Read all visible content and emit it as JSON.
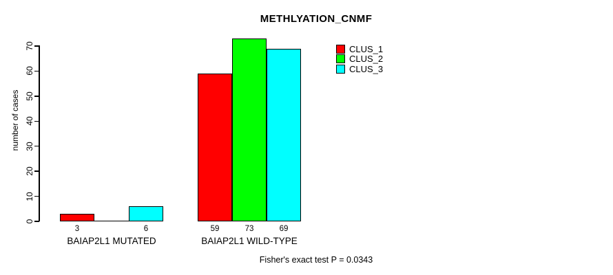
{
  "title": "METHLYATION_CNMF",
  "y_axis": {
    "label": "number of cases",
    "ticks": [
      0,
      10,
      20,
      30,
      40,
      50,
      60,
      70
    ]
  },
  "legend": [
    {
      "label": "CLUS_1",
      "color": "#FF0000"
    },
    {
      "label": "CLUS_2",
      "color": "#00FF00"
    },
    {
      "label": "CLUS_3",
      "color": "#00FFFF"
    }
  ],
  "footnote": "Fisher's exact test P = 0.0343",
  "chart_data": {
    "type": "bar",
    "categories": [
      "BAIAP2L1 MUTATED",
      "BAIAP2L1 WILD-TYPE"
    ],
    "series": [
      {
        "name": "CLUS_1",
        "color": "#FF0000",
        "values": [
          3,
          59
        ]
      },
      {
        "name": "CLUS_2",
        "color": "#00FF00",
        "values": [
          0,
          73
        ]
      },
      {
        "name": "CLUS_3",
        "color": "#00FFFF",
        "values": [
          6,
          69
        ]
      }
    ],
    "title": "METHLYATION_CNMF",
    "xlabel": "",
    "ylabel": "number of cases",
    "ylim": [
      0,
      70
    ],
    "bar_borders": "#000000",
    "value_labels_below_bars": true,
    "zero_values_unlabeled": true,
    "legend_position": "inside-top-right",
    "grid": false,
    "annotation": "Fisher's exact test P = 0.0343"
  }
}
